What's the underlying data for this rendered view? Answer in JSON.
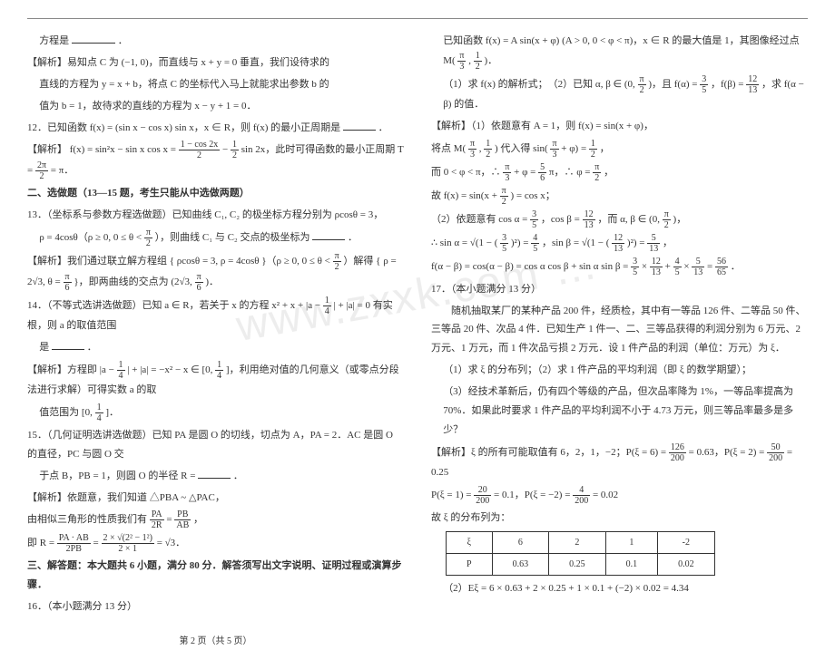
{
  "hr": true,
  "watermark": "www.zxxk.com …",
  "left": {
    "p1a": "方程是",
    "p1b": "．",
    "p2": "【解析】易知点 C 为 (−1, 0)，而直线与 x + y = 0 垂直，我们设待求的",
    "p3": "直线的方程为 y = x + b，将点 C 的坐标代入马上就能求出参数 b 的",
    "p4": "值为 b = 1，故待求的直线的方程为 x − y + 1 = 0．",
    "q12a": "12．已知函数 f(x) = (sin x − cos x) sin x，x ∈ R，则 f(x) 的最小正周期是",
    "q12b": "．",
    "a12a": "【解析】 f(x) = sin²x − sin x cos x = ",
    "a12mid1n": "1 − cos 2x",
    "a12mid1d": "2",
    "a12mid2": " − ",
    "a12mid3n": "1",
    "a12mid3d": "2",
    "a12mid4": " sin 2x，此时可得函数的最小正周期 T = ",
    "a12Tn": "2π",
    "a12Td": "2",
    "a12end": " = π．",
    "sec2": "二、选做题（13—15 题，考生只能从中选做两题）",
    "q13a": "13．（坐标系与参数方程选做题）已知曲线 C₁, C₂ 的极坐标方程分别为 ρcosθ = 3，",
    "q13b_pre": "ρ = 4cosθ（ρ ≥ 0, 0 ≤ θ < ",
    "q13b_fn": "π",
    "q13b_fd": "2",
    "q13b_post": "），则曲线 C₁ 与 C₂ 交点的极坐标为",
    "q13b_end": "．",
    "a13a": "【解析】我们通过联立解方程组 { ρcosθ = 3, ρ = 4cosθ }（ρ ≥ 0, 0 ≤ θ < ",
    "a13a_fn": "π",
    "a13a_fd": "2",
    "a13a_mid": "）解得 { ρ = 2√3, θ = ",
    "a13a_f2n": "π",
    "a13a_f2d": "6",
    "a13a_post": " }，即两曲线的交点为 (2√3, ",
    "a13a_f3n": "π",
    "a13a_f3d": "6",
    "a13a_end": ")．",
    "q14a": "14．（不等式选讲选做题）已知 a ∈ R，若关于 x 的方程 x² + x + |a − ",
    "q14_fn": "1",
    "q14_fd": "4",
    "q14b": "| + |a| = 0 有实根，则 a 的取值范围",
    "q14c": "是",
    "q14d": "．",
    "a14a": "【解析】方程即 |a − ",
    "a14_fn": "1",
    "a14_fd": "4",
    "a14b": "| + |a| = −x² − x ∈ [0, ",
    "a14_f2n": "1",
    "a14_f2d": "4",
    "a14c": "]，利用绝对值的几何意义（或零点分段法进行求解）可得实数 a 的取",
    "a14d_pre": "值范围为 [0, ",
    "a14d_fn": "1",
    "a14d_fd": "4",
    "a14d_post": "]．",
    "q15a": "15．（几何证明选讲选做题）已知 PA 是圆 O 的切线，切点为 A，PA = 2．AC 是圆 O 的直径，PC 与圆 O 交",
    "q15b": "于点 B，PB = 1，则圆 O 的半径 R =",
    "q15c": "．",
    "a15a": "【解析】依题意，我们知道 △PBA ~ △PAC，",
    "a15b_pre": "由相似三角形的性质我们有 ",
    "a15b_f1n": "PA",
    "a15b_f1d": "2R",
    "a15b_eq": " = ",
    "a15b_f2n": "PB",
    "a15b_f2d": "AB",
    "a15b_post": "，",
    "a15c_pre": "即 R = ",
    "a15c_f1n": "PA · AB",
    "a15c_f1d": "2PB",
    "a15c_eq": " = ",
    "a15c_f2n": "2 × √(2² − 1²)",
    "a15c_f2d": "2 × 1",
    "a15c_post": " = √3．",
    "sec3": "三、解答题：本大题共 6 小题，满分 80 分．解答须写出文字说明、证明过程或演算步骤．",
    "q16": "16．（本小题满分 13 分）",
    "footer": "第 2 页（共 5 页）"
  },
  "right": {
    "r1a": "已知函数 f(x) = A sin(x + φ) (A > 0, 0 < φ < π)，x ∈ R 的最大值是 1，其图像经过点 M(",
    "r1_fn": "π",
    "r1_fd": "3",
    "r1_mid": ", ",
    "r1_f2n": "1",
    "r1_f2d": "2",
    "r1b": ")．",
    "r2a": "（1）求 f(x) 的解析式；　（2）已知 α, β ∈ (0, ",
    "r2_fn": "π",
    "r2_fd": "2",
    "r2b": ")，且 f(α) = ",
    "r2_f2n": "3",
    "r2_f2d": "5",
    "r2c": "，f(β) = ",
    "r2_f3n": "12",
    "r2_f3d": "13",
    "r2d": "，求 f(α − β) 的值．",
    "r3": "【解析】（1）依题意有 A = 1，则 f(x) = sin(x + φ)，",
    "r4a": "将点 M(",
    "r4_fn": "π",
    "r4_fd": "3",
    "r4b": ", ",
    "r4_f2n": "1",
    "r4_f2d": "2",
    "r4c": ") 代入得 sin(",
    "r4_f3n": "π",
    "r4_f3d": "3",
    "r4d": " + φ) = ",
    "r4_f4n": "1",
    "r4_f4d": "2",
    "r4e": "，",
    "r5a": "而 0 < φ < π，∴ ",
    "r5_fn": "π",
    "r5_fd": "3",
    "r5b": " + φ = ",
    "r5_f2n": "5",
    "r5_f2d": "6",
    "r5c": "π，∴ φ = ",
    "r5_f3n": "π",
    "r5_f3d": "2",
    "r5d": "，",
    "r6a": "故 f(x) = sin(x + ",
    "r6_fn": "π",
    "r6_fd": "2",
    "r6b": ") = cos x；",
    "r7a": "（2）依题意有 cos α = ",
    "r7_fn": "3",
    "r7_fd": "5",
    "r7b": "，cos β = ",
    "r7_f2n": "12",
    "r7_f2d": "13",
    "r7c": "，而 α, β ∈ (0, ",
    "r7_f3n": "π",
    "r7_f3d": "2",
    "r7d": ")，",
    "r8a": "∴ sin α = √(1 − (",
    "r8_fn": "3",
    "r8_fd": "5",
    "r8b": ")²) = ",
    "r8_f2n": "4",
    "r8_f2d": "5",
    "r8c": "，sin β = √(1 − (",
    "r8_f3n": "12",
    "r8_f3d": "13",
    "r8d": ")²) = ",
    "r8_f4n": "5",
    "r8_f4d": "13",
    "r8e": "，",
    "r9a": "f(α − β) = cos(α − β) = cos α cos β + sin α sin β = ",
    "r9_f1n": "3",
    "r9_f1d": "5",
    "r9b": " × ",
    "r9_f2n": "12",
    "r9_f2d": "13",
    "r9c": " + ",
    "r9_f3n": "4",
    "r9_f3d": "5",
    "r9d": " × ",
    "r9_f4n": "5",
    "r9_f4d": "13",
    "r9e": " = ",
    "r9_f5n": "56",
    "r9_f5d": "65",
    "r9f": "．",
    "q17": "17．（本小题满分 13 分）",
    "r10": "　　随机抽取某厂的某种产品 200 件，经质检，其中有一等品 126 件、二等品 50 件、三等品 20 件、次品 4 件．已知生产 1 件一、二、三等品获得的利润分别为 6 万元、2 万元、1 万元，而 1 件次品亏损 2 万元．设 1 件产品的利润（单位：万元）为 ξ．",
    "r11": "（1）求 ξ 的分布列；（2）求 1 件产品的平均利润（即 ξ 的数学期望）；",
    "r12": "（3）经技术革新后，仍有四个等级的产品，但次品率降为 1%，一等品率提高为 70%．如果此时要求 1 件产品的平均利润不小于 4.73 万元，则三等品率最多是多少？",
    "r13a": "【解析】ξ 的所有可能取值有 6，2，1，−2；P(ξ = 6) = ",
    "r13_f1n": "126",
    "r13_f1d": "200",
    "r13b": " = 0.63，P(ξ = 2) = ",
    "r13_f2n": "50",
    "r13_f2d": "200",
    "r13c": " = 0.25",
    "r14a": "P(ξ = 1) = ",
    "r14_f1n": "20",
    "r14_f1d": "200",
    "r14b": " = 0.1，P(ξ = −2) = ",
    "r14_f2n": "4",
    "r14_f2d": "200",
    "r14c": " = 0.02",
    "r15": "故 ξ 的分布列为：",
    "table": {
      "h": [
        "ξ",
        "6",
        "2",
        "1",
        "-2"
      ],
      "r": [
        "P",
        "0.63",
        "0.25",
        "0.1",
        "0.02"
      ]
    },
    "r16": "（2）Eξ = 6 × 0.63 + 2 × 0.25 + 1 × 0.1 + (−2) × 0.02 = 4.34"
  }
}
